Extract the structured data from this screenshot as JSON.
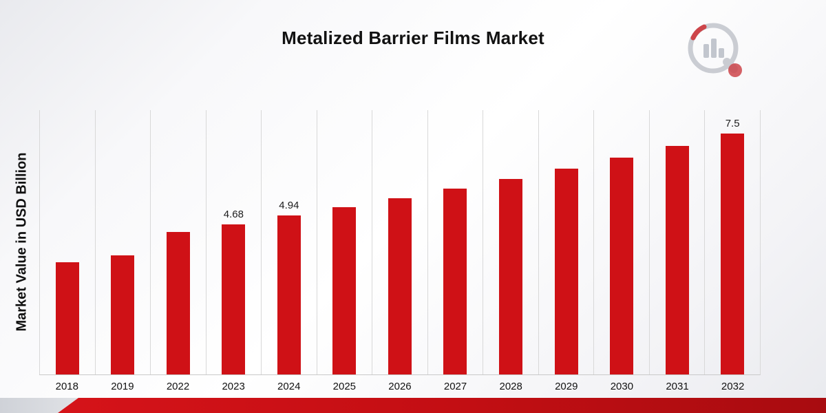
{
  "chart_data": {
    "type": "bar",
    "title": "Metalized Barrier Films Market",
    "ylabel": "Market Value in USD Billion",
    "categories": [
      "2018",
      "2019",
      "2022",
      "2023",
      "2024",
      "2025",
      "2026",
      "2027",
      "2028",
      "2029",
      "2030",
      "2031",
      "2032"
    ],
    "values": [
      3.49,
      3.7,
      4.43,
      4.68,
      4.94,
      5.21,
      5.49,
      5.78,
      6.09,
      6.41,
      6.75,
      7.11,
      7.5
    ],
    "bar_labels": [
      "",
      "",
      "",
      "4.68",
      "4.94",
      "",
      "",
      "",
      "",
      "",
      "",
      "",
      "7.5"
    ],
    "bar_color": "#cf1116",
    "ylim": [
      0,
      8.25
    ],
    "grid": "vertical",
    "legend": "none",
    "xlabel": ""
  },
  "branding": {
    "logo": "bar-chart-magnifier-logo"
  }
}
